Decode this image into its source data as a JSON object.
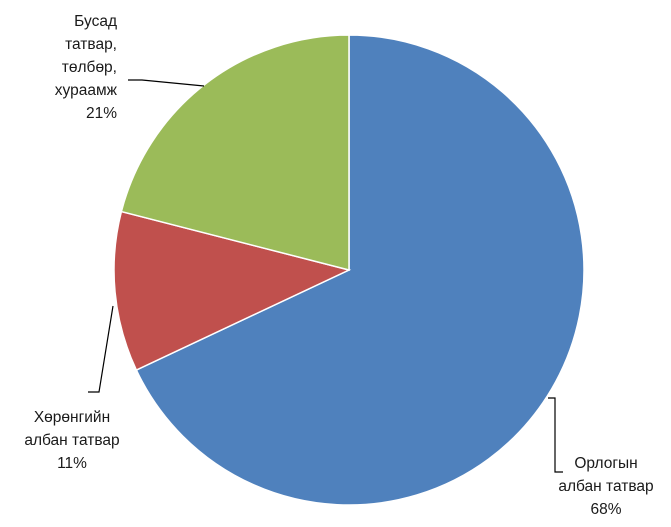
{
  "chart_data": {
    "type": "pie",
    "title": "",
    "start_angle_deg": 0,
    "direction": "clockwise",
    "slices": [
      {
        "label": [
          "Орлогын",
          "албан татвар"
        ],
        "value": 68,
        "value_label": "68%",
        "color": "#4F81BD"
      },
      {
        "label": [
          "Хөрөнгийн",
          "албан татвар"
        ],
        "value": 11,
        "value_label": "11%",
        "color": "#C0504D"
      },
      {
        "label": [
          "Бусад",
          "татвар,",
          "төлбөр,",
          "хураамж"
        ],
        "value": 21,
        "value_label": "21%",
        "color": "#9BBB59"
      }
    ]
  }
}
